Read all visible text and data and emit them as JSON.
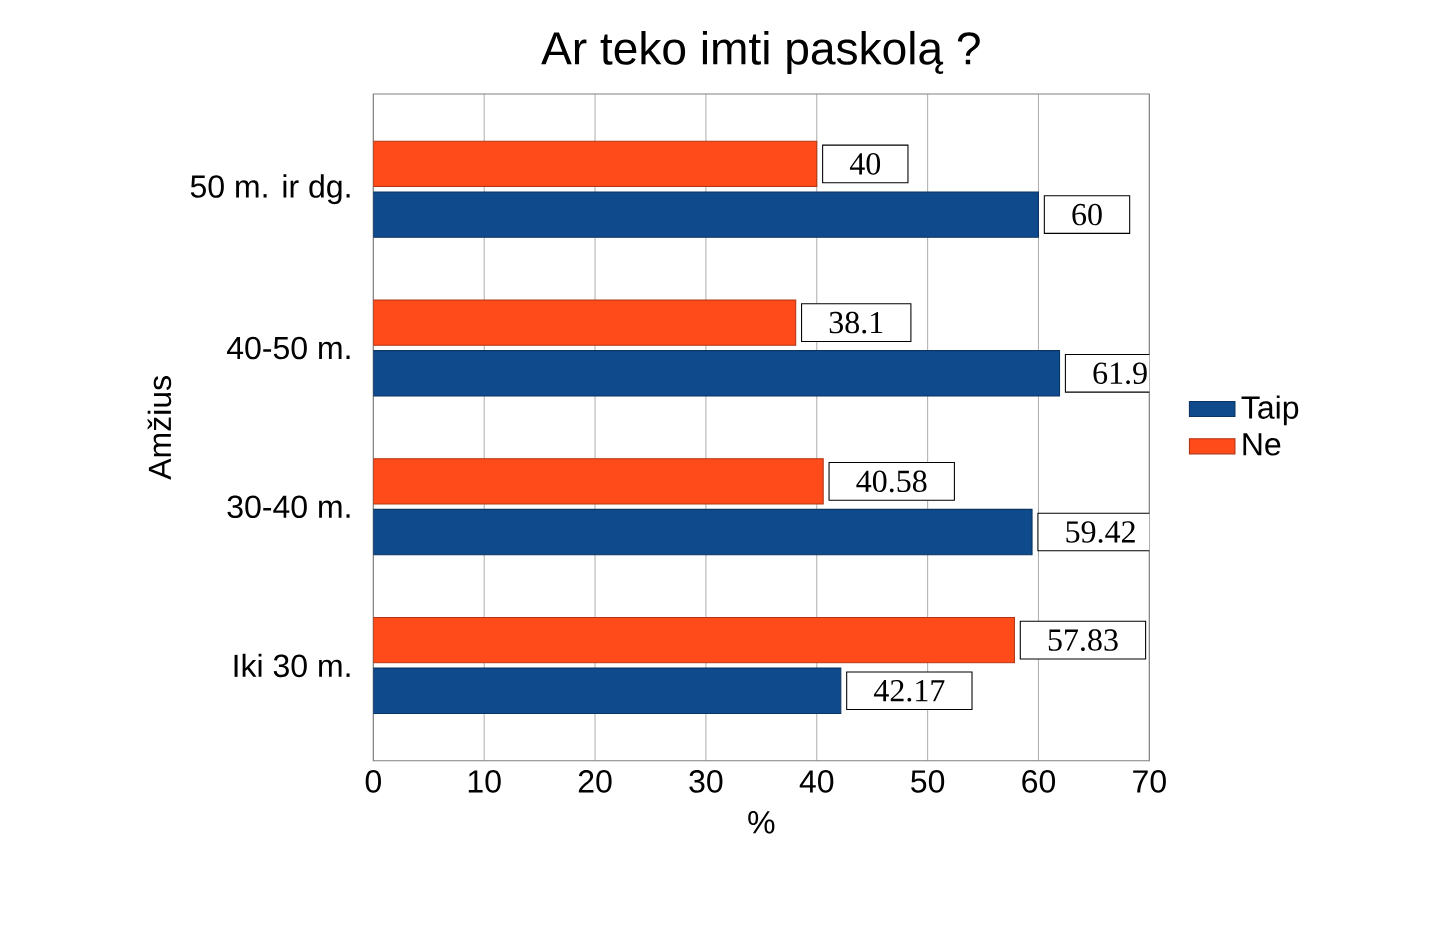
{
  "chart_data": {
    "type": "bar",
    "orientation": "horizontal",
    "title": "Ar teko imti paskolą ?",
    "xlabel": "%",
    "ylabel": "Amžius",
    "categories": [
      "50 m. ir dg.",
      "40-50 m.",
      "30-40 m.",
      "Iki 30 m."
    ],
    "series": [
      {
        "name": "Taip",
        "color": "#0f4a8c",
        "values": [
          60,
          61.9,
          59.42,
          42.17
        ]
      },
      {
        "name": "Ne",
        "color": "#ff4a1a",
        "values": [
          40,
          38.1,
          40.58,
          57.83
        ]
      }
    ],
    "xlim": [
      0,
      70
    ],
    "xticks": [
      0,
      10,
      20,
      30,
      40,
      50,
      60,
      70
    ],
    "grid": "x",
    "legend": "right",
    "data_labels": true
  }
}
